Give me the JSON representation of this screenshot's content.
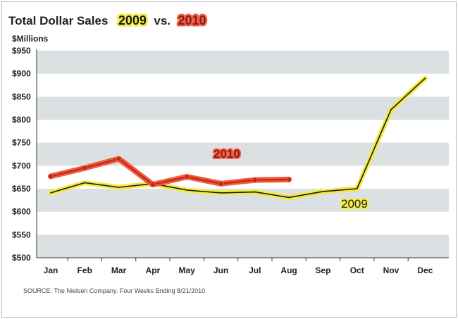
{
  "title": {
    "prefix": "Total Dollar Sales",
    "year_a": "2009",
    "connector": "vs.",
    "year_b": "2010"
  },
  "source": "SOURCE: The Nielsen Company.  Four Weeks Ending 8/21/2010",
  "colors": {
    "band": "#dbe1e3",
    "line_2009_glow": "#f2ea40",
    "line_2009_core": "#1a1a1a",
    "line_2010_glow": "#ef5a3c",
    "line_2010_core": "#c4281b"
  },
  "chart_data": {
    "type": "line",
    "ylabel": "$Millions",
    "ylim": [
      500,
      950
    ],
    "yticks": [
      950,
      900,
      850,
      800,
      750,
      700,
      650,
      600,
      550,
      500
    ],
    "ytick_labels": [
      "$950",
      "$900",
      "$850",
      "$800",
      "$750",
      "$700",
      "$650",
      "$600",
      "$550",
      "$500"
    ],
    "categories": [
      "Jan",
      "Feb",
      "Mar",
      "Apr",
      "May",
      "Jun",
      "Jul",
      "Aug",
      "Sep",
      "Oct",
      "Nov",
      "Dec"
    ],
    "grid": "alternating horizontal bands",
    "series": [
      {
        "name": "2009",
        "values": [
          641,
          663,
          653,
          661,
          647,
          641,
          643,
          631,
          644,
          650,
          822,
          890
        ]
      },
      {
        "name": "2010",
        "values": [
          677,
          695,
          715,
          659,
          676,
          661,
          669,
          670,
          null,
          null,
          null,
          null
        ]
      }
    ]
  }
}
